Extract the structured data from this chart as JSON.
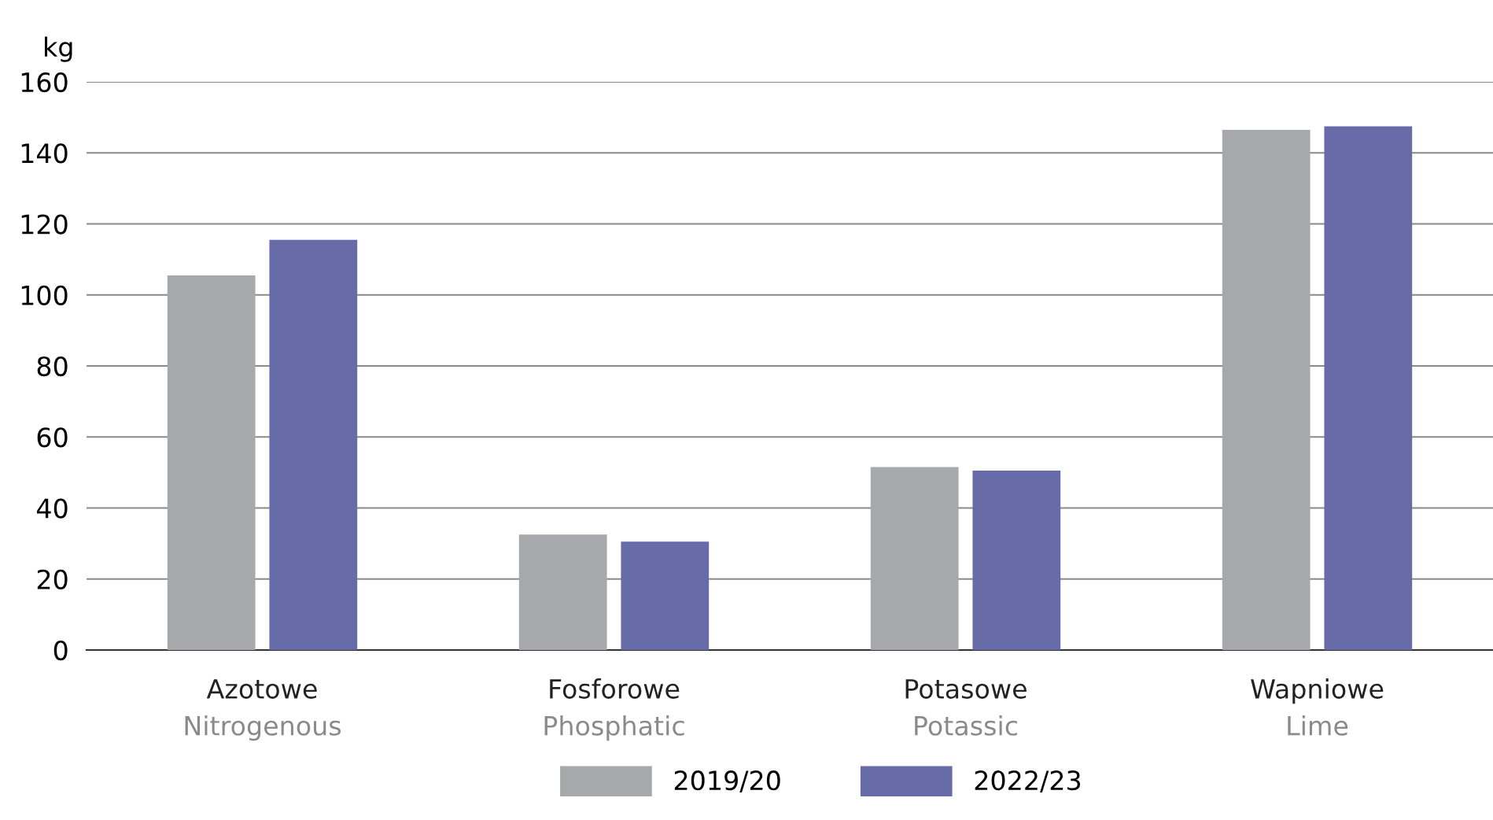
{
  "chart_data": {
    "type": "bar",
    "ylabel": "kg",
    "categories": [
      "Azotowe\nNitrogenous",
      "Fosforowe\nPhosphatic",
      "Potasowe\nPotassic",
      "Wapniowe\nLime"
    ],
    "series": [
      {
        "name": "2019/20",
        "color": "#a7a8ab",
        "values": [
          105.5,
          32.5,
          51.5,
          146.5
        ]
      },
      {
        "name": "2022/23",
        "color": "#676ca8",
        "values": [
          115.5,
          30.5,
          50.5,
          147.5
        ]
      }
    ],
    "ylim": [
      0,
      160
    ],
    "yticks": [
      0,
      20,
      40,
      60,
      80,
      100,
      120,
      140,
      160
    ],
    "grid": "y",
    "legend": "bottom"
  }
}
